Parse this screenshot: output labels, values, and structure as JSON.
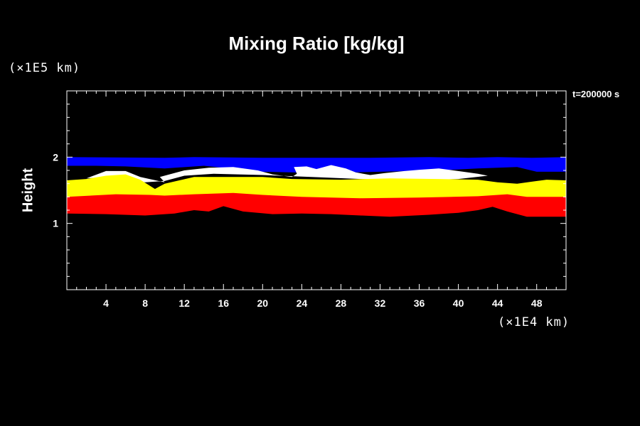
{
  "chart_data": {
    "type": "area",
    "title": "Mixing Ratio [kg/kg]",
    "ylabel": "Height",
    "y_unit_label": "(×1E5 km)",
    "x_unit_label": "(×1E4 km)",
    "time_label": "t=200000 s",
    "xlim": [
      0,
      51
    ],
    "ylim": [
      0,
      3
    ],
    "x_ticks": [
      4,
      8,
      12,
      16,
      20,
      24,
      28,
      32,
      36,
      40,
      44,
      48
    ],
    "y_ticks": [
      1,
      2
    ],
    "x_minor_step": 1,
    "y_minor_step": 0.2,
    "layers": [
      {
        "color": "#0000ff",
        "points": [
          [
            0,
            1.87
          ],
          [
            0,
            2.0
          ],
          [
            10,
            1.99
          ],
          [
            13,
            2.0
          ],
          [
            20,
            1.99
          ],
          [
            25,
            1.99
          ],
          [
            31,
            1.99
          ],
          [
            37,
            2.0
          ],
          [
            41,
            1.99
          ],
          [
            44,
            2.0
          ],
          [
            47.5,
            1.99
          ],
          [
            51,
            2.0
          ],
          [
            51,
            1.78
          ],
          [
            48,
            1.78
          ],
          [
            46,
            1.85
          ],
          [
            42,
            1.83
          ],
          [
            38,
            1.8
          ],
          [
            32,
            1.78
          ],
          [
            26,
            1.76
          ],
          [
            20,
            1.78
          ],
          [
            14,
            1.87
          ],
          [
            10,
            1.83
          ],
          [
            6,
            1.86
          ],
          [
            3,
            1.87
          ]
        ]
      },
      {
        "color": "#ffffff",
        "points": [
          [
            2,
            1.68
          ],
          [
            4,
            1.79
          ],
          [
            6,
            1.79
          ],
          [
            7.5,
            1.7
          ],
          [
            10,
            1.62
          ],
          [
            9.5,
            1.7
          ],
          [
            12,
            1.8
          ],
          [
            14.5,
            1.84
          ],
          [
            17,
            1.85
          ],
          [
            19.5,
            1.8
          ],
          [
            21,
            1.74
          ],
          [
            23,
            1.7
          ],
          [
            23.5,
            1.75
          ],
          [
            23.2,
            1.85
          ],
          [
            24.5,
            1.86
          ],
          [
            25.5,
            1.82
          ],
          [
            27,
            1.88
          ],
          [
            28.5,
            1.83
          ],
          [
            29.5,
            1.77
          ],
          [
            31,
            1.73
          ],
          [
            32.5,
            1.76
          ],
          [
            34.5,
            1.79
          ],
          [
            36,
            1.81
          ],
          [
            38,
            1.83
          ],
          [
            39.5,
            1.8
          ],
          [
            40.5,
            1.78
          ],
          [
            42,
            1.75
          ],
          [
            43,
            1.72
          ],
          [
            40,
            1.67
          ],
          [
            35,
            1.65
          ],
          [
            30,
            1.67
          ],
          [
            25,
            1.7
          ],
          [
            20,
            1.73
          ],
          [
            15,
            1.75
          ],
          [
            12,
            1.72
          ],
          [
            10,
            1.64
          ],
          [
            8,
            1.62
          ],
          [
            6,
            1.66
          ],
          [
            4,
            1.7
          ]
        ]
      },
      {
        "color": "#ffff00",
        "points": [
          [
            0,
            1.38
          ],
          [
            0,
            1.65
          ],
          [
            2,
            1.67
          ],
          [
            4,
            1.72
          ],
          [
            6,
            1.74
          ],
          [
            7.5,
            1.66
          ],
          [
            9,
            1.52
          ],
          [
            10,
            1.6
          ],
          [
            13,
            1.7
          ],
          [
            20,
            1.7
          ],
          [
            23,
            1.67
          ],
          [
            28,
            1.66
          ],
          [
            33,
            1.68
          ],
          [
            38,
            1.67
          ],
          [
            42,
            1.66
          ],
          [
            44,
            1.62
          ],
          [
            46,
            1.6
          ],
          [
            47.5,
            1.63
          ],
          [
            49,
            1.66
          ],
          [
            51,
            1.65
          ],
          [
            51,
            1.38
          ],
          [
            47,
            1.39
          ],
          [
            45,
            1.43
          ],
          [
            43,
            1.4
          ],
          [
            36,
            1.38
          ],
          [
            30,
            1.37
          ],
          [
            24,
            1.39
          ],
          [
            20,
            1.42
          ],
          [
            17,
            1.45
          ],
          [
            14,
            1.43
          ],
          [
            11,
            1.42
          ],
          [
            9,
            1.4
          ],
          [
            8,
            1.42
          ],
          [
            5,
            1.43
          ],
          [
            0,
            1.38
          ]
        ]
      },
      {
        "color": "#ff0000",
        "points": [
          [
            0,
            1.15
          ],
          [
            0,
            1.4
          ],
          [
            5,
            1.44
          ],
          [
            8.5,
            1.43
          ],
          [
            10,
            1.42
          ],
          [
            13,
            1.44
          ],
          [
            17,
            1.46
          ],
          [
            20,
            1.43
          ],
          [
            24,
            1.4
          ],
          [
            30,
            1.38
          ],
          [
            36,
            1.39
          ],
          [
            42,
            1.41
          ],
          [
            45,
            1.44
          ],
          [
            47,
            1.4
          ],
          [
            51,
            1.4
          ],
          [
            51,
            1.1
          ],
          [
            47,
            1.1
          ],
          [
            45,
            1.18
          ],
          [
            43.5,
            1.25
          ],
          [
            42,
            1.2
          ],
          [
            40,
            1.16
          ],
          [
            37,
            1.13
          ],
          [
            33,
            1.1
          ],
          [
            30,
            1.12
          ],
          [
            27,
            1.14
          ],
          [
            24,
            1.15
          ],
          [
            21,
            1.14
          ],
          [
            18,
            1.18
          ],
          [
            16,
            1.26
          ],
          [
            14.5,
            1.18
          ],
          [
            13,
            1.2
          ],
          [
            11,
            1.15
          ],
          [
            8,
            1.12
          ],
          [
            4,
            1.14
          ]
        ]
      }
    ]
  }
}
